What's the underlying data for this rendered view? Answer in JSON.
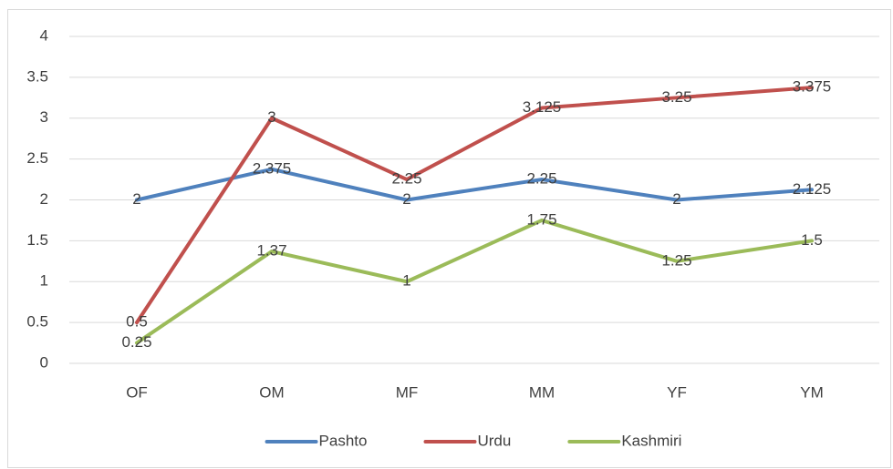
{
  "chart_data": {
    "type": "line",
    "categories": [
      "OF",
      "OM",
      "MF",
      "MM",
      "YF",
      "YM"
    ],
    "series": [
      {
        "name": "Pashto",
        "color": "#4f81bd",
        "values": [
          2,
          2.375,
          2,
          2.25,
          2,
          2.125
        ]
      },
      {
        "name": "Urdu",
        "color": "#c0504d",
        "values": [
          0.5,
          3,
          2.25,
          3.125,
          3.25,
          3.375
        ]
      },
      {
        "name": "Kashmiri",
        "color": "#9bbb59",
        "values": [
          0.25,
          1.37,
          1,
          1.75,
          1.25,
          1.5
        ]
      }
    ],
    "ylim": [
      0,
      4
    ],
    "yticks": [
      0,
      0.5,
      1,
      1.5,
      2,
      2.5,
      3,
      3.5,
      4
    ],
    "grid": true,
    "legend": "bottom"
  }
}
